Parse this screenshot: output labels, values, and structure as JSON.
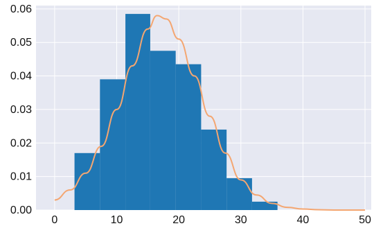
{
  "chart_data": {
    "type": "bar",
    "title": "",
    "xlabel": "",
    "ylabel": "",
    "xlim": [
      -3,
      51
    ],
    "ylim": [
      0,
      0.061
    ],
    "grid": true,
    "x_ticks": [
      0,
      10,
      20,
      30,
      40,
      50
    ],
    "x_tick_labels": [
      "0",
      "10",
      "20",
      "30",
      "40",
      "50"
    ],
    "y_ticks": [
      0.0,
      0.01,
      0.02,
      0.03,
      0.04,
      0.05,
      0.06
    ],
    "y_tick_labels": [
      "0.00",
      "0.01",
      "0.02",
      "0.03",
      "0.04",
      "0.05",
      "0.06"
    ],
    "histogram": {
      "bin_edges": [
        3.2,
        7.3,
        11.4,
        15.4,
        19.5,
        23.6,
        27.7,
        31.8,
        35.9
      ],
      "values": [
        0.017,
        0.039,
        0.0585,
        0.0475,
        0.0435,
        0.024,
        0.0095,
        0.0025
      ]
    },
    "curve": {
      "type": "line",
      "x": [
        0,
        2.5,
        5,
        7.5,
        10,
        12.5,
        15,
        16.5,
        18,
        20,
        22.5,
        25,
        27.5,
        30,
        32.5,
        35,
        37.5,
        40,
        42.5,
        45,
        47.5,
        50
      ],
      "y": [
        0.003,
        0.006,
        0.011,
        0.019,
        0.03,
        0.043,
        0.054,
        0.058,
        0.057,
        0.051,
        0.04,
        0.028,
        0.017,
        0.009,
        0.0045,
        0.002,
        0.0008,
        0.0003,
        0.0001,
        0.0,
        0.0,
        0.0
      ]
    },
    "colors": {
      "plot_background": "#e6e8f2",
      "grid": "#ffffff",
      "bars": "#1f77b4",
      "curve": "#f4a671"
    }
  }
}
